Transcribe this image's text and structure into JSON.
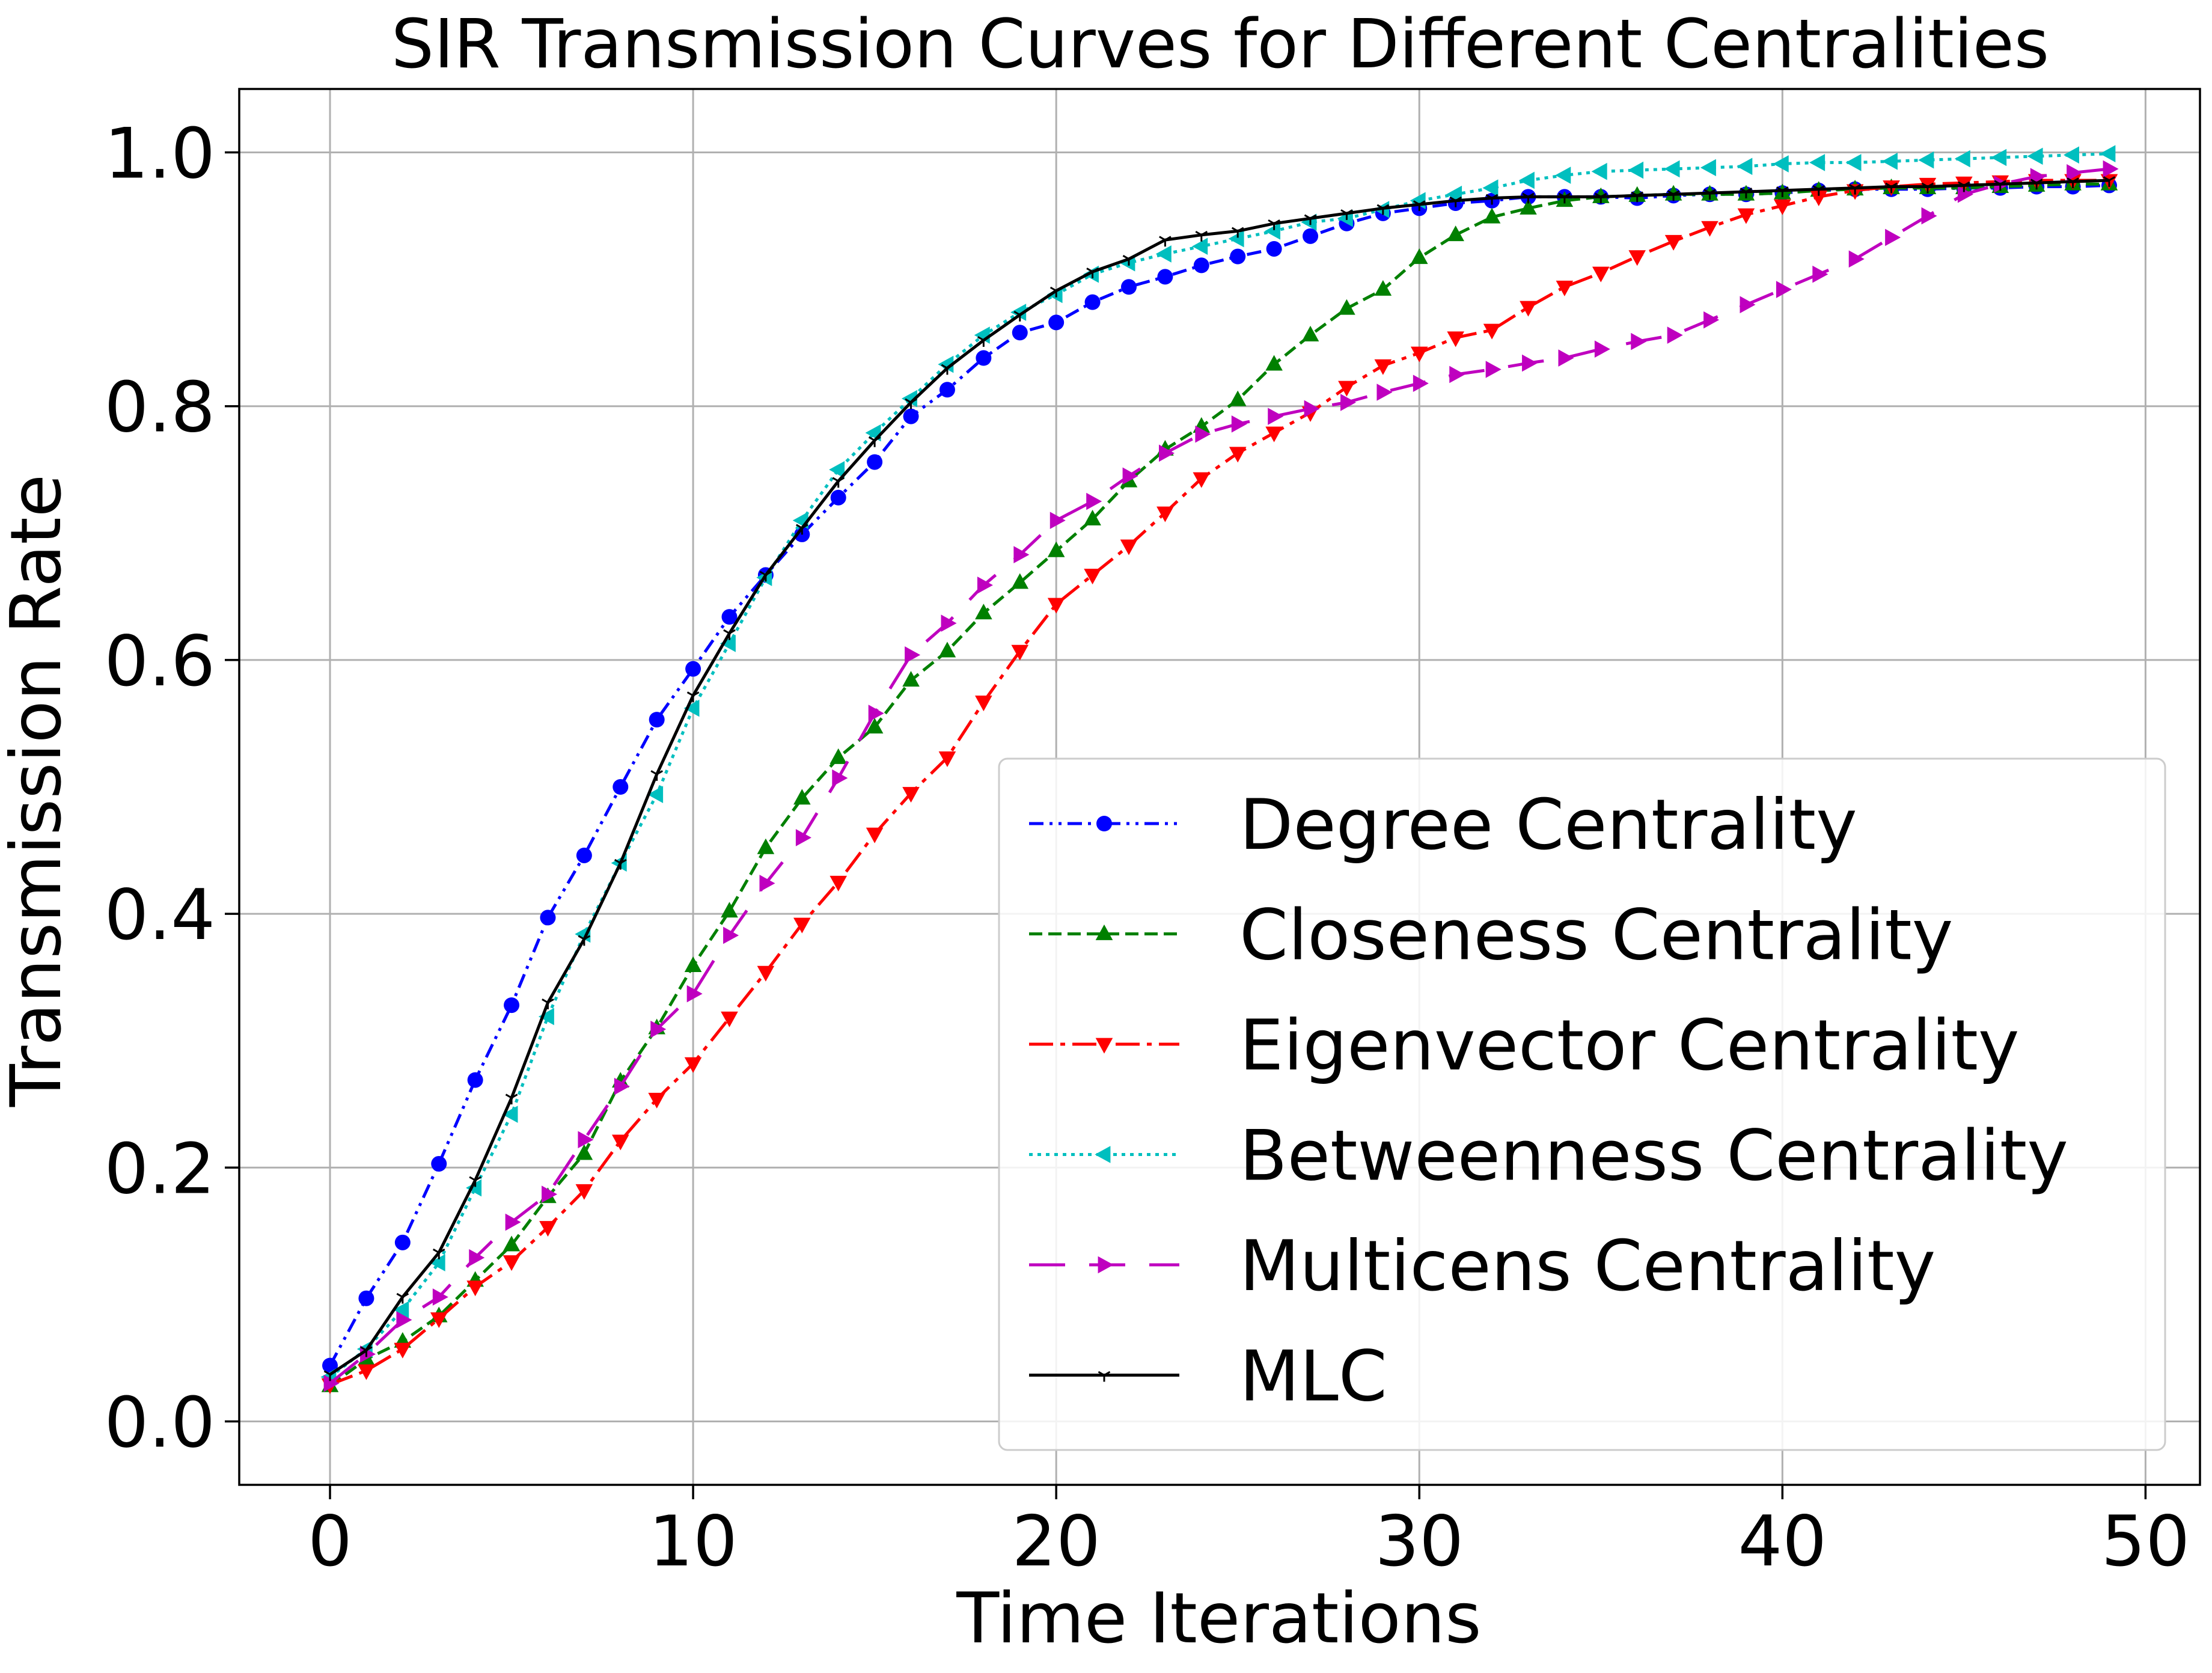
{
  "chart_data": {
    "type": "line",
    "title": "SIR Transmission Curves for Different Centralities",
    "xlabel": "Time Iterations",
    "ylabel": "Transmission Rate",
    "xlim": [
      -2.5,
      51.5
    ],
    "ylim": [
      -0.05,
      1.05
    ],
    "xticks": [
      0,
      10,
      20,
      30,
      40,
      50
    ],
    "xtick_labels": [
      "0",
      "10",
      "20",
      "30",
      "40",
      "50"
    ],
    "yticks": [
      0.0,
      0.2,
      0.4,
      0.6,
      0.8,
      1.0
    ],
    "ytick_labels": [
      "0.0",
      "0.2",
      "0.4",
      "0.6",
      "0.8",
      "1.0"
    ],
    "grid": true,
    "legend_position": "lower right",
    "x": [
      0,
      1,
      2,
      3,
      4,
      5,
      6,
      7,
      8,
      9,
      10,
      11,
      12,
      13,
      14,
      15,
      16,
      17,
      18,
      19,
      20,
      21,
      22,
      23,
      24,
      25,
      26,
      27,
      28,
      29,
      30,
      31,
      32,
      33,
      34,
      35,
      36,
      37,
      38,
      39,
      40,
      41,
      42,
      43,
      44,
      45,
      46,
      47,
      48,
      49
    ],
    "series": [
      {
        "name": "Degree Centrality",
        "color": "#0000ff",
        "marker": "circle",
        "dash": "dashdotdot",
        "values": [
          0.044,
          0.097,
          0.141,
          0.203,
          0.269,
          0.328,
          0.397,
          0.446,
          0.5,
          0.553,
          0.593,
          0.634,
          0.667,
          0.699,
          0.728,
          0.756,
          0.792,
          0.813,
          0.838,
          0.858,
          0.866,
          0.882,
          0.894,
          0.902,
          0.911,
          0.918,
          0.924,
          0.934,
          0.944,
          0.952,
          0.956,
          0.96,
          0.962,
          0.965,
          0.965,
          0.965,
          0.964,
          0.966,
          0.967,
          0.967,
          0.968,
          0.97,
          0.971,
          0.971,
          0.971,
          0.972,
          0.972,
          0.973,
          0.973,
          0.974
        ]
      },
      {
        "name": "Closeness Centrality",
        "color": "#008000",
        "marker": "triangle-up",
        "dash": "dashed",
        "values": [
          0.028,
          0.049,
          0.063,
          0.083,
          0.111,
          0.139,
          0.177,
          0.211,
          0.268,
          0.31,
          0.359,
          0.402,
          0.452,
          0.491,
          0.523,
          0.547,
          0.584,
          0.607,
          0.637,
          0.661,
          0.686,
          0.711,
          0.741,
          0.766,
          0.784,
          0.805,
          0.833,
          0.856,
          0.877,
          0.892,
          0.917,
          0.935,
          0.949,
          0.956,
          0.962,
          0.965,
          0.966,
          0.967,
          0.967,
          0.967,
          0.968,
          0.97,
          0.971,
          0.972,
          0.972,
          0.972,
          0.973,
          0.974,
          0.975,
          0.975
        ]
      },
      {
        "name": "Eigenvector Centrality",
        "color": "#ff0000",
        "marker": "triangle-down",
        "dash": "dashdot",
        "values": [
          0.029,
          0.04,
          0.057,
          0.081,
          0.106,
          0.126,
          0.153,
          0.182,
          0.221,
          0.254,
          0.282,
          0.318,
          0.354,
          0.392,
          0.425,
          0.463,
          0.495,
          0.523,
          0.567,
          0.607,
          0.644,
          0.667,
          0.69,
          0.716,
          0.743,
          0.763,
          0.779,
          0.795,
          0.815,
          0.832,
          0.842,
          0.854,
          0.86,
          0.878,
          0.894,
          0.905,
          0.918,
          0.93,
          0.941,
          0.951,
          0.958,
          0.965,
          0.97,
          0.973,
          0.975,
          0.976,
          0.977,
          0.978,
          0.978,
          0.978
        ]
      },
      {
        "name": "Betweenness Centrality",
        "color": "#00bfbf",
        "marker": "triangle-left",
        "dash": "dotted",
        "values": [
          0.035,
          0.057,
          0.088,
          0.125,
          0.184,
          0.242,
          0.319,
          0.384,
          0.44,
          0.494,
          0.562,
          0.613,
          0.665,
          0.71,
          0.75,
          0.779,
          0.806,
          0.833,
          0.856,
          0.874,
          0.888,
          0.904,
          0.913,
          0.92,
          0.926,
          0.932,
          0.938,
          0.945,
          0.948,
          0.955,
          0.962,
          0.967,
          0.972,
          0.978,
          0.982,
          0.985,
          0.986,
          0.987,
          0.988,
          0.989,
          0.991,
          0.992,
          0.992,
          0.993,
          0.994,
          0.995,
          0.996,
          0.997,
          0.998,
          0.999
        ]
      },
      {
        "name": "Multicens Centrality",
        "color": "#bf00bf",
        "marker": "triangle-right",
        "dash": "longdash",
        "values": [
          0.03,
          0.053,
          0.08,
          0.098,
          0.129,
          0.157,
          0.179,
          0.222,
          0.264,
          0.309,
          0.337,
          0.383,
          0.424,
          0.46,
          0.507,
          0.558,
          0.604,
          0.629,
          0.659,
          0.683,
          0.71,
          0.725,
          0.745,
          0.763,
          0.778,
          0.786,
          0.792,
          0.798,
          0.803,
          0.811,
          0.818,
          0.825,
          0.829,
          0.834,
          0.838,
          0.845,
          0.851,
          0.856,
          0.868,
          0.88,
          0.892,
          0.904,
          0.916,
          0.933,
          0.95,
          0.967,
          0.975,
          0.981,
          0.984,
          0.987
        ]
      },
      {
        "name": "MLC",
        "color": "#000000",
        "marker": "tri-down",
        "dash": "solid",
        "values": [
          0.037,
          0.056,
          0.098,
          0.133,
          0.19,
          0.255,
          0.33,
          0.38,
          0.44,
          0.51,
          0.572,
          0.621,
          0.667,
          0.704,
          0.741,
          0.773,
          0.803,
          0.83,
          0.852,
          0.872,
          0.891,
          0.906,
          0.916,
          0.931,
          0.935,
          0.938,
          0.944,
          0.948,
          0.952,
          0.956,
          0.959,
          0.962,
          0.964,
          0.965,
          0.965,
          0.965,
          0.966,
          0.967,
          0.968,
          0.969,
          0.97,
          0.971,
          0.972,
          0.973,
          0.973,
          0.974,
          0.975,
          0.976,
          0.977,
          0.978
        ]
      }
    ]
  }
}
